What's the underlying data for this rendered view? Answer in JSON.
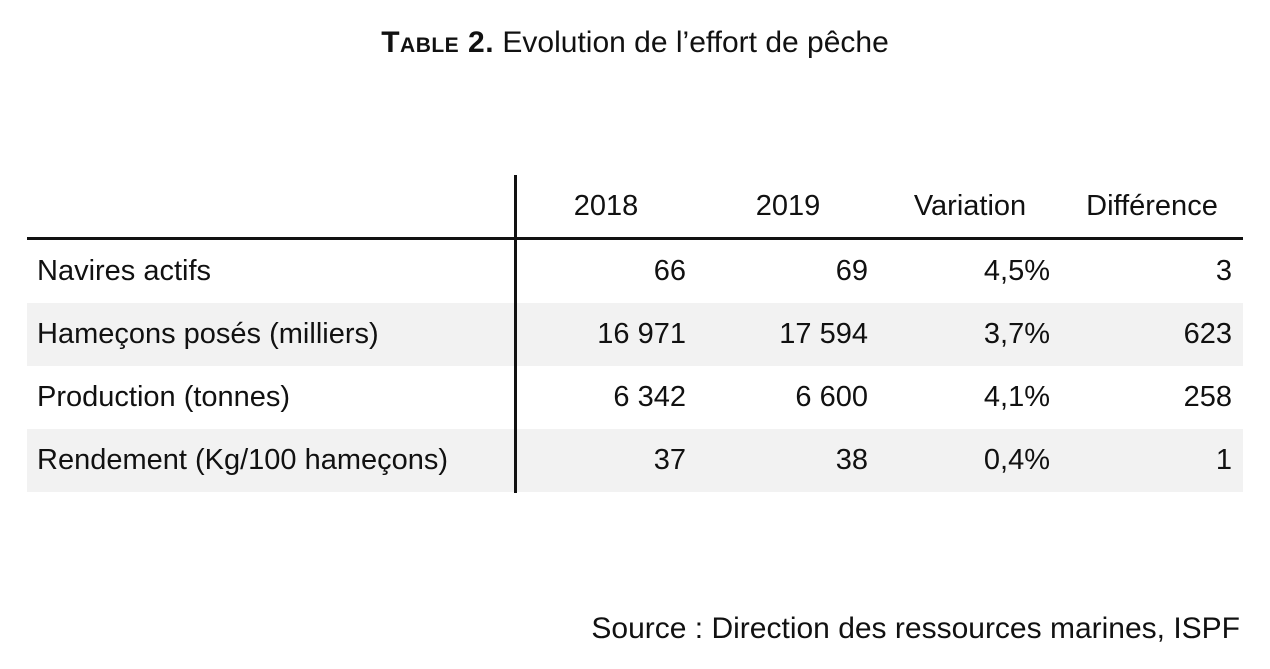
{
  "title": {
    "label": "Table 2.",
    "text": "Evolution de l’effort de pêche"
  },
  "table": {
    "headers": [
      "",
      "2018",
      "2019",
      "Variation",
      "Différence"
    ],
    "rows": [
      [
        "Navires actifs",
        "66",
        "69",
        "4,5%",
        "3"
      ],
      [
        "Hameçons posés (milliers)",
        "16 971",
        "17 594",
        "3,7%",
        "623"
      ],
      [
        "Production (tonnes)",
        "6 342",
        "6 600",
        "4,1%",
        "258"
      ],
      [
        "Rendement (Kg/100 hameçons)",
        "37",
        "38",
        "0,4%",
        "1"
      ]
    ]
  },
  "source": "Source : Direction des ressources marines, ISPF"
}
